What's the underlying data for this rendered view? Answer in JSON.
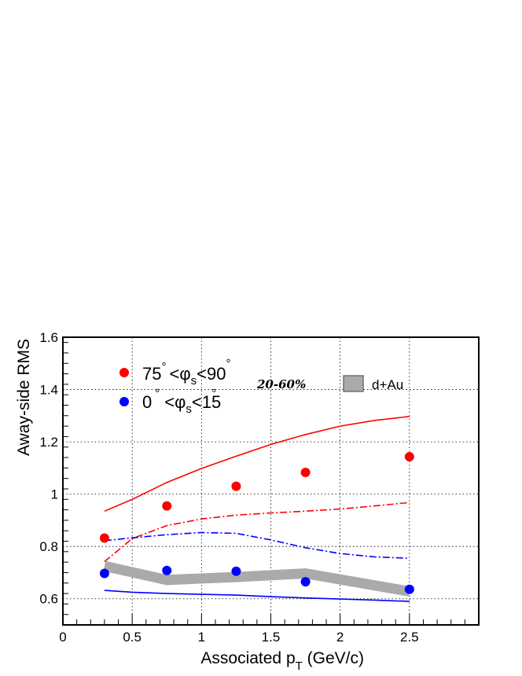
{
  "chart_data": {
    "type": "scatter",
    "xlabel": "Associated p",
    "xlabel_sub": "T",
    "xlabel_unit": " (GeV/c)",
    "ylabel": "Away-side RMS",
    "xlim": [
      0,
      3.0
    ],
    "ylim": [
      0.5,
      1.6
    ],
    "grid": true,
    "x_ticks": [
      0,
      0.5,
      1,
      1.5,
      2,
      2.5
    ],
    "x_tick_labels": [
      "0",
      "0.5",
      "1",
      "1.5",
      "2",
      "2.5"
    ],
    "y_ticks": [
      0.6,
      0.8,
      1.0,
      1.2,
      1.4,
      1.6
    ],
    "y_tick_labels": [
      "0.6",
      "0.8",
      "1",
      "1.2",
      "1.4",
      "1.6"
    ],
    "annotation": "20-60%",
    "legend": [
      {
        "id": "red",
        "pre": "75",
        "mid": "<φ",
        "sub": "s",
        "post": "<90",
        "color": "#ff0000"
      },
      {
        "id": "blue",
        "pre": "0",
        "mid": "<φ",
        "sub": "s",
        "post": "<15",
        "color": "#0000ff"
      },
      {
        "id": "dau",
        "label": "d+Au",
        "color": "#aaaaaa"
      }
    ],
    "degree_symbol": "°",
    "series": [
      {
        "name": "75°<φs<90°",
        "kind": "points",
        "color": "#ff0000",
        "x": [
          0.3,
          0.75,
          1.25,
          1.75,
          2.5
        ],
        "y": [
          0.832,
          0.955,
          1.03,
          1.083,
          1.143
        ]
      },
      {
        "name": "0°<φs<15°",
        "kind": "points",
        "color": "#0000ff",
        "x": [
          0.3,
          0.75,
          1.25,
          1.75,
          2.5
        ],
        "y": [
          0.697,
          0.708,
          0.705,
          0.665,
          0.636
        ]
      },
      {
        "name": "d+Au",
        "kind": "band",
        "color": "#aaaaaa",
        "x": [
          0.3,
          0.75,
          1.25,
          1.75,
          2.5
        ],
        "y": [
          0.725,
          0.672,
          0.683,
          0.697,
          0.628
        ]
      },
      {
        "kind": "line",
        "style": "solid",
        "color": "#ff0000",
        "x": [
          0.3,
          0.5,
          0.75,
          1.0,
          1.25,
          1.5,
          1.75,
          2.0,
          2.25,
          2.5
        ],
        "y": [
          0.935,
          0.98,
          1.045,
          1.098,
          1.145,
          1.19,
          1.228,
          1.26,
          1.282,
          1.297
        ]
      },
      {
        "kind": "line",
        "style": "dashdot",
        "color": "#ff0000",
        "x": [
          0.3,
          0.5,
          0.75,
          1.0,
          1.25,
          1.5,
          1.75,
          2.0,
          2.25,
          2.5
        ],
        "y": [
          0.742,
          0.83,
          0.88,
          0.905,
          0.92,
          0.928,
          0.935,
          0.943,
          0.955,
          0.968
        ]
      },
      {
        "kind": "line",
        "style": "dashdot",
        "color": "#0000ff",
        "x": [
          0.3,
          0.5,
          0.75,
          1.0,
          1.25,
          1.5,
          1.75,
          2.0,
          2.25,
          2.5
        ],
        "y": [
          0.822,
          0.833,
          0.845,
          0.853,
          0.85,
          0.825,
          0.795,
          0.773,
          0.76,
          0.755
        ]
      },
      {
        "kind": "line",
        "style": "solid",
        "color": "#0000ff",
        "x": [
          0.3,
          0.5,
          0.75,
          1.0,
          1.25,
          1.5,
          1.75,
          2.0,
          2.25,
          2.5
        ],
        "y": [
          0.632,
          0.625,
          0.62,
          0.617,
          0.614,
          0.608,
          0.603,
          0.599,
          0.595,
          0.59
        ]
      }
    ]
  }
}
